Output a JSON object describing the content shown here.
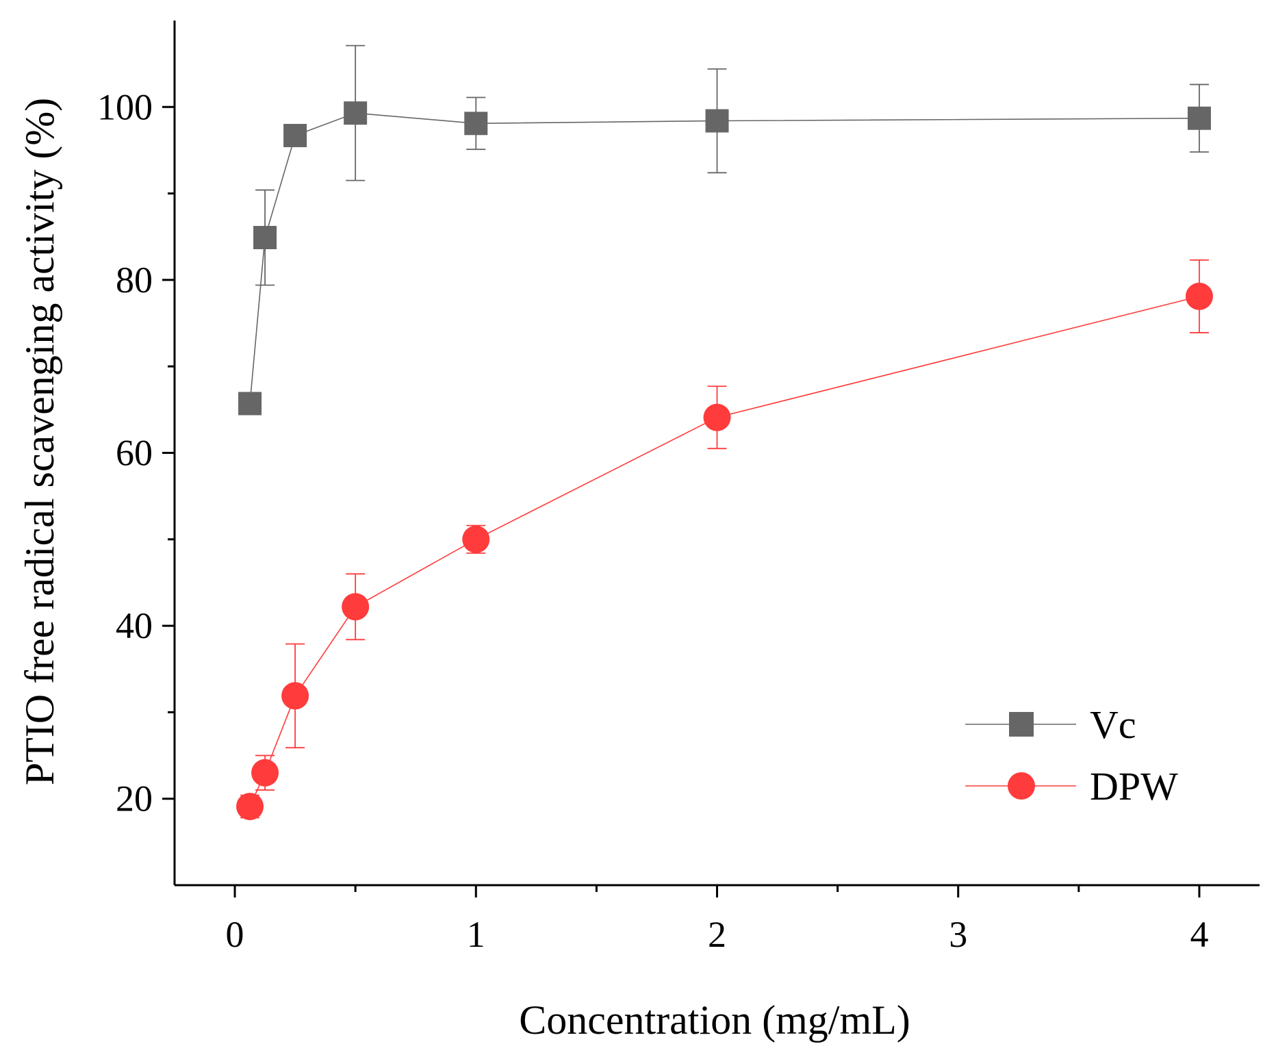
{
  "chart_data": {
    "type": "line",
    "title": "",
    "xlabel": "Concentration (mg/mL)",
    "ylabel": "PTIO free radical scavenging activity (%)",
    "xlim": [
      -0.25,
      4.25
    ],
    "ylim": [
      10,
      110
    ],
    "xticks": [
      0,
      1,
      2,
      3,
      4
    ],
    "xtick_labels": [
      "0",
      "1",
      "2",
      "3",
      "4"
    ],
    "xminor": [
      0.5,
      1.5,
      2.5,
      3.5
    ],
    "yticks": [
      20,
      40,
      60,
      80,
      100
    ],
    "ytick_labels": [
      "20",
      "40",
      "60",
      "80",
      "100"
    ],
    "yminor": [
      30,
      50,
      70,
      90
    ],
    "grid": false,
    "legend_position": "bottom-right",
    "series": [
      {
        "name": "Vc",
        "marker": "square",
        "color": "#666666",
        "x": [
          0.0625,
          0.125,
          0.25,
          0.5,
          1,
          2,
          4
        ],
        "y": [
          65.7,
          84.9,
          96.7,
          99.3,
          98.1,
          98.4,
          98.7
        ],
        "err": [
          0.5,
          5.5,
          0.5,
          7.8,
          3.0,
          6.0,
          3.9
        ]
      },
      {
        "name": "DPW",
        "marker": "circle",
        "color": "#ff3b3b",
        "x": [
          0.0625,
          0.125,
          0.25,
          0.5,
          1,
          2,
          4
        ],
        "y": [
          19.1,
          23.0,
          31.9,
          42.2,
          50.0,
          64.1,
          78.1
        ],
        "err": [
          1.3,
          2.0,
          6.0,
          3.8,
          1.6,
          3.6,
          4.2
        ]
      }
    ]
  }
}
